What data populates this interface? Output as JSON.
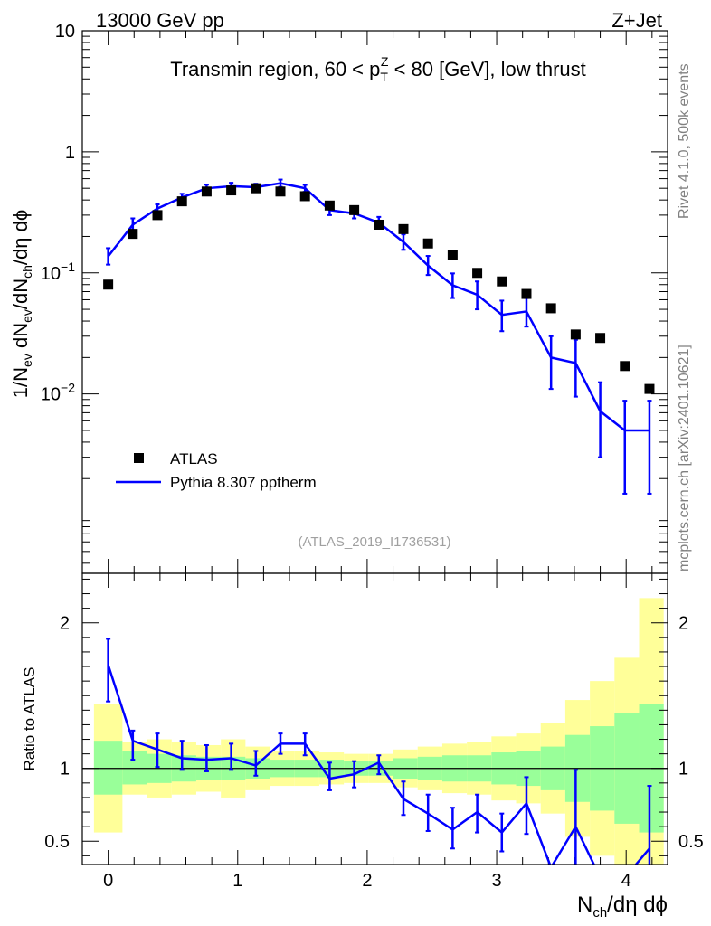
{
  "header": {
    "left": "13000 GeV pp",
    "right": "Z+Jet",
    "title_parts": {
      "pre": "Transmin region, 60 < p",
      "sup": "Z",
      "sub": "T",
      "post": " < 80 [GeV], low thrust"
    },
    "analysis_id": "(ATLAS_2019_I1736531)",
    "side_rivet": "Rivet 4.1.0,  500k events",
    "side_site": "mcplots.cern.ch [arXiv:2401.10621]"
  },
  "colors": {
    "data_marker": "#000000",
    "mc_line": "#0000ff",
    "band_inner": "#99ff99",
    "band_outer": "#ffff99"
  },
  "chart_data": [
    {
      "type": "scatter",
      "name": "main",
      "yscale": "log",
      "xlim": [
        -0.2,
        4.32
      ],
      "ylim": [
        0.00033,
        10
      ],
      "ylabel_parts": [
        "1/N",
        "ev",
        " dN",
        "ev",
        "/dN",
        "ch",
        "/dη dϕ"
      ],
      "yticks": [
        {
          "value": 10,
          "label": "10"
        },
        {
          "value": 1,
          "label": "1"
        },
        {
          "value": 0.1,
          "base": "10",
          "exp": "−1"
        },
        {
          "value": 0.01,
          "base": "10",
          "exp": "−2"
        }
      ],
      "legend": {
        "position": "lower-left",
        "entries": [
          "ATLAS",
          "Pythia 8.307 pptherm"
        ]
      },
      "series": [
        {
          "name": "ATLAS",
          "style": "marker",
          "x": [
            0.0,
            0.19,
            0.38,
            0.57,
            0.76,
            0.95,
            1.14,
            1.33,
            1.52,
            1.71,
            1.9,
            2.09,
            2.28,
            2.47,
            2.66,
            2.85,
            3.04,
            3.23,
            3.42,
            3.61,
            3.8,
            3.99,
            4.18
          ],
          "values": [
            0.08,
            0.21,
            0.3,
            0.39,
            0.47,
            0.48,
            0.5,
            0.47,
            0.43,
            0.36,
            0.33,
            0.25,
            0.23,
            0.175,
            0.14,
            0.1,
            0.085,
            0.067,
            0.051,
            0.031,
            0.029,
            0.017,
            0.011
          ]
        },
        {
          "name": "Pythia 8.307 pptherm",
          "style": "line",
          "x": [
            0.0,
            0.19,
            0.38,
            0.57,
            0.76,
            0.95,
            1.14,
            1.33,
            1.52,
            1.71,
            1.9,
            2.09,
            2.28,
            2.47,
            2.66,
            2.85,
            3.04,
            3.23,
            3.42,
            3.61,
            3.8,
            3.99,
            4.18
          ],
          "values": [
            0.137,
            0.25,
            0.34,
            0.42,
            0.5,
            0.52,
            0.51,
            0.55,
            0.5,
            0.33,
            0.31,
            0.26,
            0.18,
            0.115,
            0.079,
            0.066,
            0.045,
            0.048,
            0.02,
            0.018,
            0.0072,
            0.005,
            0.005
          ],
          "err_lo": [
            0.117,
            0.222,
            0.315,
            0.392,
            0.47,
            0.485,
            0.478,
            0.513,
            0.467,
            0.3,
            0.282,
            0.233,
            0.155,
            0.096,
            0.062,
            0.05,
            0.033,
            0.036,
            0.011,
            0.0095,
            0.003,
            0.0015,
            0.0015
          ],
          "err_hi": [
            0.16,
            0.282,
            0.368,
            0.45,
            0.535,
            0.555,
            0.545,
            0.59,
            0.533,
            0.362,
            0.34,
            0.29,
            0.208,
            0.138,
            0.099,
            0.085,
            0.059,
            0.062,
            0.03,
            0.028,
            0.0125,
            0.0088,
            0.0088
          ]
        }
      ]
    },
    {
      "type": "line",
      "name": "ratio",
      "xlim": [
        -0.2,
        4.32
      ],
      "ylim": [
        0.34,
        2.34
      ],
      "ylabel": "Ratio to ATLAS",
      "xlabel_parts": [
        "N",
        "ch",
        "/dη dϕ"
      ],
      "xticks": [
        0,
        1,
        2,
        3,
        4
      ],
      "yticks": [
        {
          "value": 2,
          "label": "2"
        },
        {
          "value": 1,
          "label": "1"
        },
        {
          "value": 0.5,
          "label": "0.5"
        }
      ],
      "bin_edges": [
        -0.11,
        0.11,
        0.3,
        0.49,
        0.68,
        0.87,
        1.06,
        1.25,
        1.44,
        1.63,
        1.82,
        2.01,
        2.2,
        2.39,
        2.58,
        2.77,
        2.96,
        3.15,
        3.34,
        3.53,
        3.72,
        3.91,
        4.1,
        4.29
      ],
      "band_inner": {
        "lo": [
          0.82,
          0.89,
          0.9,
          0.91,
          0.92,
          0.92,
          0.93,
          0.94,
          0.94,
          0.94,
          0.95,
          0.95,
          0.93,
          0.92,
          0.91,
          0.91,
          0.89,
          0.88,
          0.85,
          0.77,
          0.71,
          0.62,
          0.56
        ],
        "hi": [
          1.19,
          1.12,
          1.1,
          1.09,
          1.08,
          1.08,
          1.07,
          1.06,
          1.06,
          1.06,
          1.05,
          1.05,
          1.07,
          1.08,
          1.09,
          1.09,
          1.11,
          1.12,
          1.15,
          1.23,
          1.29,
          1.38,
          1.44
        ]
      },
      "band_outer": {
        "lo": [
          0.56,
          0.82,
          0.8,
          0.82,
          0.84,
          0.8,
          0.85,
          0.88,
          0.88,
          0.89,
          0.9,
          0.9,
          0.87,
          0.85,
          0.83,
          0.82,
          0.78,
          0.76,
          0.69,
          0.53,
          0.4,
          0.34,
          0.34
        ],
        "hi": [
          1.44,
          1.18,
          1.2,
          1.18,
          1.16,
          1.2,
          1.15,
          1.12,
          1.12,
          1.11,
          1.1,
          1.1,
          1.13,
          1.15,
          1.17,
          1.18,
          1.22,
          1.24,
          1.31,
          1.47,
          1.6,
          1.76,
          2.17
        ]
      },
      "reference_line": 1,
      "series": [
        {
          "name": "Pythia 8.307 pptherm / ATLAS",
          "x": [
            0.0,
            0.19,
            0.38,
            0.57,
            0.76,
            0.95,
            1.14,
            1.33,
            1.52,
            1.71,
            1.9,
            2.09,
            2.28,
            2.47,
            2.66,
            2.85,
            3.04,
            3.23,
            3.42,
            3.61,
            3.8,
            3.99,
            4.18
          ],
          "values": [
            1.71,
            1.19,
            1.13,
            1.07,
            1.06,
            1.07,
            1.02,
            1.17,
            1.17,
            0.93,
            0.96,
            1.04,
            0.79,
            0.69,
            0.58,
            0.7,
            0.56,
            0.76,
            0.32,
            0.6,
            0.25,
            0.25,
            0.45
          ],
          "err_lo": [
            1.46,
            1.06,
            1.01,
            0.99,
            0.98,
            0.99,
            0.95,
            1.1,
            1.09,
            0.85,
            0.87,
            0.96,
            0.68,
            0.57,
            0.45,
            0.56,
            0.43,
            0.55,
            0.3,
            0.3,
            0.3,
            0.3,
            0.3
          ],
          "err_hi": [
            1.89,
            1.26,
            1.24,
            1.19,
            1.16,
            1.17,
            1.12,
            1.24,
            1.24,
            1.04,
            1.05,
            1.09,
            0.91,
            0.82,
            0.73,
            0.82,
            0.69,
            0.94,
            0.4,
            0.99,
            0.4,
            0.4,
            0.88
          ]
        }
      ]
    }
  ]
}
